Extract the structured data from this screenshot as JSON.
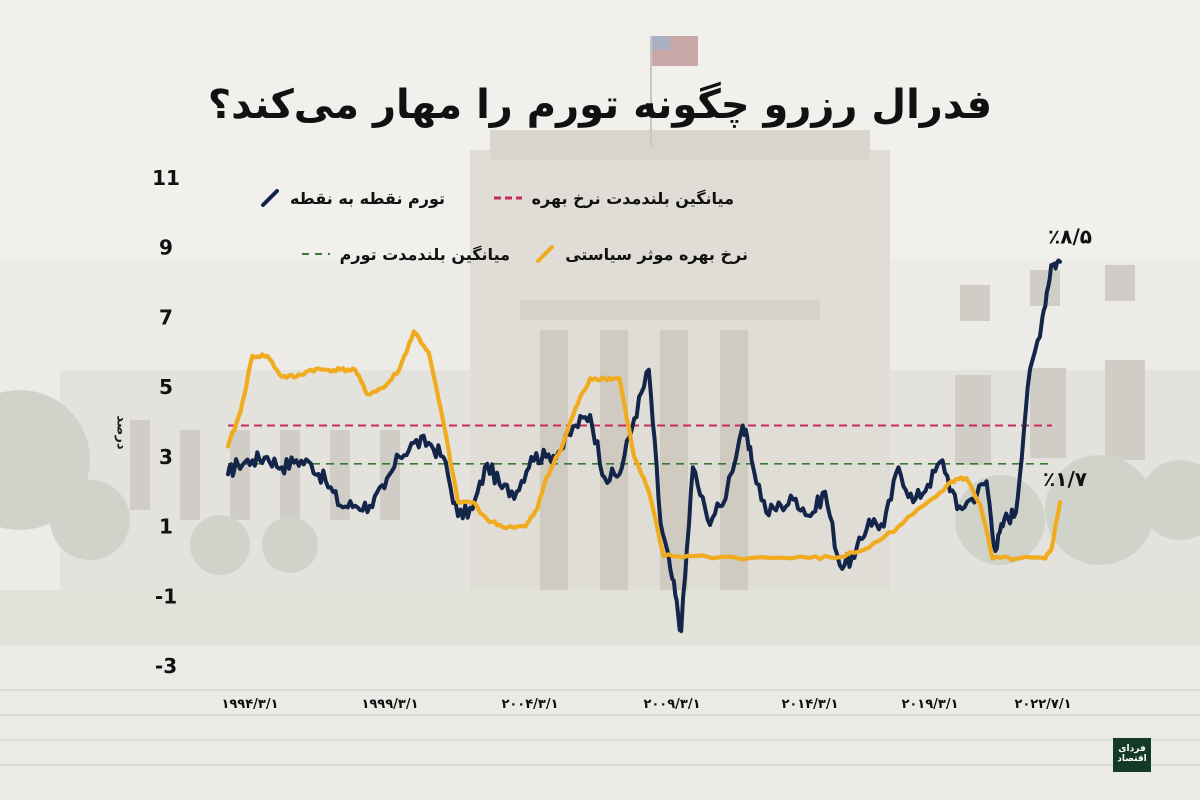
{
  "title": "فدرال رزرو چگونه تورم را مهار می‌کند؟",
  "logo_text": "فردای اقتصاد",
  "chart_data": {
    "type": "line",
    "title": "فدرال رزرو چگونه تورم را مهار می‌کند؟",
    "ylabel": "درصد",
    "ylim": [
      -3,
      11
    ],
    "yticks": [
      "11",
      "9",
      "7",
      "5",
      "3",
      "1",
      "-1",
      "-3"
    ],
    "xticks": [
      "۱۹۹۴/۳/۱",
      "۱۹۹۹/۳/۱",
      "۲۰۰۴/۳/۱",
      "۲۰۰۹/۳/۱",
      "۲۰۱۴/۳/۱",
      "۲۰۱۹/۳/۱",
      "۲۰۲۲/۷/۱"
    ],
    "xrange": [
      1994.17,
      2022.5
    ],
    "grid": false,
    "legend": [
      {
        "label": "تورم نقطه به نقطه",
        "color": "#14254a",
        "style": "solid"
      },
      {
        "label": "میانگین بلندمدت نرخ بهره",
        "color": "#c42d5a",
        "style": "dashed"
      },
      {
        "label": "نرخ بهره موثر سیاستی",
        "color": "#f0ac1e",
        "style": "solid"
      },
      {
        "label": "میانگین بلندمدت تورم",
        "color": "#3b7a35",
        "style": "dashed"
      }
    ],
    "annotations": [
      {
        "text": "٪۸/۵",
        "series": "تورم نقطه به نقطه"
      },
      {
        "text": "٪۱/۷",
        "series": "نرخ بهره موثر سیاستی"
      }
    ],
    "reference_lines": [
      {
        "name": "میانگین بلندمدت نرخ بهره",
        "y": 3.9
      },
      {
        "name": "میانگین بلندمدت تورم",
        "y": 2.8
      }
    ],
    "series": [
      {
        "name": "تورم نقطه به نقطه",
        "color": "#14254a",
        "points": [
          [
            1994.17,
            2.5
          ],
          [
            1994.5,
            2.8
          ],
          [
            1995.0,
            2.9
          ],
          [
            1995.5,
            3.0
          ],
          [
            1996.0,
            2.7
          ],
          [
            1996.5,
            2.9
          ],
          [
            1997.0,
            2.8
          ],
          [
            1997.5,
            2.3
          ],
          [
            1998.0,
            1.6
          ],
          [
            1998.5,
            1.6
          ],
          [
            1999.0,
            1.6
          ],
          [
            1999.5,
            2.1
          ],
          [
            2000.0,
            3.0
          ],
          [
            2000.5,
            3.4
          ],
          [
            2001.0,
            3.4
          ],
          [
            2001.5,
            3.0
          ],
          [
            2002.0,
            1.3
          ],
          [
            2002.5,
            1.5
          ],
          [
            2003.0,
            2.8
          ],
          [
            2003.5,
            2.1
          ],
          [
            2004.0,
            2.0
          ],
          [
            2004.5,
            3.0
          ],
          [
            2005.0,
            3.0
          ],
          [
            2005.5,
            3.2
          ],
          [
            2006.0,
            3.9
          ],
          [
            2006.5,
            4.2
          ],
          [
            2007.0,
            2.4
          ],
          [
            2007.5,
            2.5
          ],
          [
            2008.0,
            4.1
          ],
          [
            2008.5,
            5.5
          ],
          [
            2008.9,
            1.1
          ],
          [
            2009.3,
            -0.5
          ],
          [
            2009.6,
            -2.0
          ],
          [
            2010.0,
            2.7
          ],
          [
            2010.5,
            1.2
          ],
          [
            2011.0,
            1.6
          ],
          [
            2011.7,
            3.9
          ],
          [
            2012.0,
            2.9
          ],
          [
            2012.5,
            1.4
          ],
          [
            2013.0,
            1.6
          ],
          [
            2013.5,
            1.8
          ],
          [
            2014.0,
            1.3
          ],
          [
            2014.5,
            2.0
          ],
          [
            2015.0,
            -0.1
          ],
          [
            2015.5,
            0.1
          ],
          [
            2016.0,
            1.2
          ],
          [
            2016.5,
            1.0
          ],
          [
            2017.0,
            2.7
          ],
          [
            2017.5,
            1.7
          ],
          [
            2018.0,
            2.2
          ],
          [
            2018.5,
            2.9
          ],
          [
            2019.0,
            1.5
          ],
          [
            2019.5,
            1.8
          ],
          [
            2020.0,
            2.3
          ],
          [
            2020.3,
            0.3
          ],
          [
            2020.6,
            1.2
          ],
          [
            2021.0,
            1.4
          ],
          [
            2021.4,
            5.0
          ],
          [
            2021.9,
            7.0
          ],
          [
            2022.2,
            8.5
          ],
          [
            2022.5,
            8.6
          ]
        ]
      },
      {
        "name": "نرخ بهره موثر سیاستی",
        "color": "#f0ac1e",
        "points": [
          [
            1994.17,
            3.3
          ],
          [
            1994.6,
            4.3
          ],
          [
            1995.0,
            5.9
          ],
          [
            1995.5,
            5.9
          ],
          [
            1996.0,
            5.3
          ],
          [
            1996.5,
            5.3
          ],
          [
            1997.0,
            5.5
          ],
          [
            1997.5,
            5.5
          ],
          [
            1998.0,
            5.5
          ],
          [
            1998.5,
            5.5
          ],
          [
            1998.9,
            4.8
          ],
          [
            1999.5,
            5.0
          ],
          [
            2000.0,
            5.5
          ],
          [
            2000.5,
            6.6
          ],
          [
            2001.0,
            6.0
          ],
          [
            2001.5,
            4.0
          ],
          [
            2002.0,
            1.7
          ],
          [
            2002.5,
            1.7
          ],
          [
            2003.0,
            1.2
          ],
          [
            2003.5,
            1.0
          ],
          [
            2004.3,
            1.0
          ],
          [
            2004.7,
            1.5
          ],
          [
            2005.0,
            2.4
          ],
          [
            2005.5,
            3.2
          ],
          [
            2006.0,
            4.4
          ],
          [
            2006.5,
            5.25
          ],
          [
            2007.0,
            5.25
          ],
          [
            2007.5,
            5.25
          ],
          [
            2008.0,
            3.0
          ],
          [
            2008.5,
            2.0
          ],
          [
            2009.0,
            0.15
          ],
          [
            2010.0,
            0.15
          ],
          [
            2012.0,
            0.1
          ],
          [
            2014.0,
            0.1
          ],
          [
            2015.0,
            0.12
          ],
          [
            2016.0,
            0.4
          ],
          [
            2017.0,
            1.0
          ],
          [
            2018.0,
            1.7
          ],
          [
            2018.8,
            2.3
          ],
          [
            2019.3,
            2.4
          ],
          [
            2019.8,
            1.6
          ],
          [
            2020.2,
            0.08
          ],
          [
            2021.0,
            0.08
          ],
          [
            2022.0,
            0.08
          ],
          [
            2022.2,
            0.33
          ],
          [
            2022.5,
            1.7
          ]
        ]
      }
    ]
  }
}
